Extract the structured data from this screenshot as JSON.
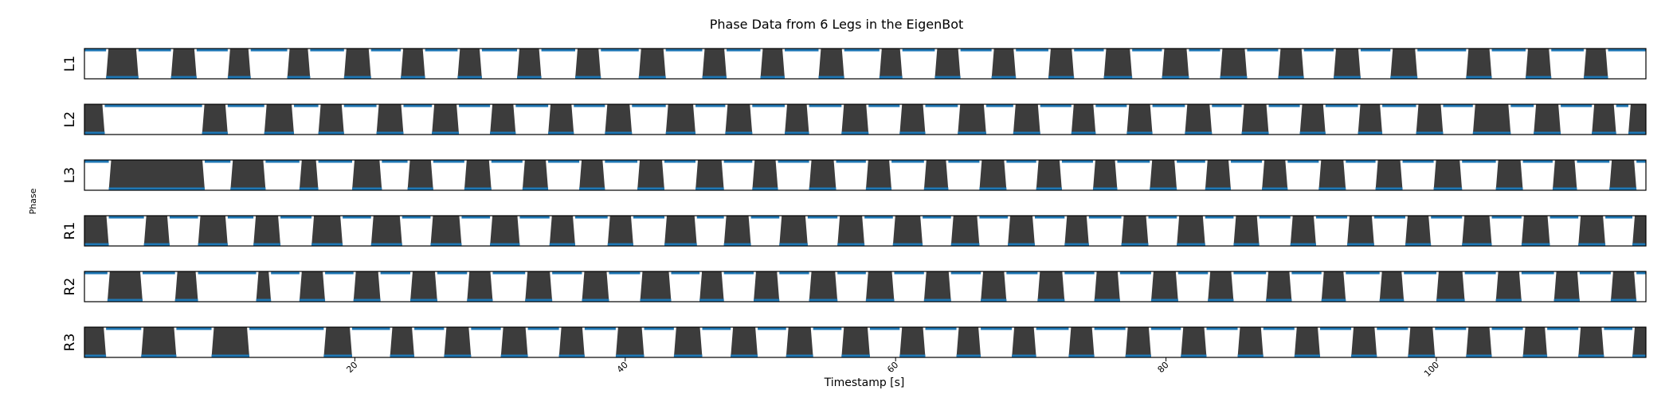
{
  "chart_data": {
    "type": "area",
    "title": "Phase Data from 6 Legs in the EigenBot",
    "xlabel": "Timestamp [s]",
    "ylabel": "Phase",
    "xlim": [
      0,
      115.5
    ],
    "x_ticks": [
      20,
      40,
      60,
      80,
      100
    ],
    "colors": {
      "stance_fill": "#3c3c3c",
      "phase_line": "#1f77b4",
      "frame": "#000000"
    },
    "legs": [
      {
        "name": "L1",
        "stance_intervals": [
          [
            1.6,
            4.0
          ],
          [
            6.4,
            8.3
          ],
          [
            10.6,
            12.3
          ],
          [
            15.0,
            16.7
          ],
          [
            19.2,
            21.2
          ],
          [
            23.4,
            25.2
          ],
          [
            27.6,
            29.4
          ],
          [
            32.0,
            33.8
          ],
          [
            36.3,
            38.2
          ],
          [
            41.0,
            43.0
          ],
          [
            45.7,
            47.5
          ],
          [
            50.0,
            51.8
          ],
          [
            54.3,
            56.2
          ],
          [
            58.8,
            60.5
          ],
          [
            62.9,
            64.8
          ],
          [
            67.1,
            68.9
          ],
          [
            71.3,
            73.2
          ],
          [
            75.4,
            77.5
          ],
          [
            79.7,
            81.7
          ],
          [
            84.0,
            86.0
          ],
          [
            88.3,
            90.2
          ],
          [
            92.4,
            94.4
          ],
          [
            96.6,
            98.6
          ],
          [
            102.2,
            104.1
          ],
          [
            106.6,
            108.5
          ],
          [
            110.9,
            112.7
          ]
        ]
      },
      {
        "name": "L2",
        "stance_intervals": [
          [
            0,
            1.5
          ],
          [
            8.7,
            10.6
          ],
          [
            13.3,
            15.5
          ],
          [
            17.3,
            19.2
          ],
          [
            21.6,
            23.6
          ],
          [
            25.7,
            27.7
          ],
          [
            30.0,
            31.9
          ],
          [
            34.3,
            36.2
          ],
          [
            38.5,
            40.5
          ],
          [
            43.0,
            45.2
          ],
          [
            47.4,
            49.4
          ],
          [
            51.8,
            53.6
          ],
          [
            56.0,
            58.0
          ],
          [
            60.3,
            62.2
          ],
          [
            64.6,
            66.7
          ],
          [
            68.7,
            70.7
          ],
          [
            73.0,
            74.8
          ],
          [
            77.1,
            79.0
          ],
          [
            81.4,
            83.4
          ],
          [
            85.6,
            87.6
          ],
          [
            89.9,
            91.8
          ],
          [
            94.2,
            96.0
          ],
          [
            98.5,
            100.5
          ],
          [
            102.7,
            105.5
          ],
          [
            107.2,
            109.2
          ],
          [
            111.5,
            113.3
          ],
          [
            114.2,
            115.5
          ]
        ]
      },
      {
        "name": "L3",
        "stance_intervals": [
          [
            1.8,
            8.9
          ],
          [
            10.8,
            13.4
          ],
          [
            15.9,
            17.3
          ],
          [
            19.8,
            22.0
          ],
          [
            23.9,
            25.8
          ],
          [
            28.1,
            30.1
          ],
          [
            32.4,
            34.3
          ],
          [
            36.6,
            38.5
          ],
          [
            40.9,
            42.9
          ],
          [
            45.2,
            47.3
          ],
          [
            49.4,
            51.3
          ],
          [
            53.6,
            55.6
          ],
          [
            57.8,
            59.7
          ],
          [
            62.1,
            63.9
          ],
          [
            66.2,
            68.2
          ],
          [
            70.4,
            72.3
          ],
          [
            74.6,
            76.4
          ],
          [
            78.8,
            80.8
          ],
          [
            82.9,
            84.8
          ],
          [
            87.1,
            89.0
          ],
          [
            91.3,
            93.3
          ],
          [
            95.5,
            97.5
          ],
          [
            99.8,
            101.9
          ],
          [
            104.4,
            106.4
          ],
          [
            108.6,
            110.4
          ],
          [
            112.8,
            114.8
          ]
        ]
      },
      {
        "name": "R1",
        "stance_intervals": [
          [
            0,
            1.8
          ],
          [
            4.4,
            6.3
          ],
          [
            8.4,
            10.6
          ],
          [
            12.5,
            14.5
          ],
          [
            16.8,
            19.1
          ],
          [
            21.2,
            23.5
          ],
          [
            25.6,
            27.9
          ],
          [
            30.0,
            32.2
          ],
          [
            34.4,
            36.3
          ],
          [
            38.7,
            40.6
          ],
          [
            42.9,
            45.3
          ],
          [
            47.3,
            49.3
          ],
          [
            51.4,
            53.5
          ],
          [
            55.7,
            57.7
          ],
          [
            59.8,
            62.0
          ],
          [
            64.1,
            66.2
          ],
          [
            68.3,
            70.3
          ],
          [
            72.5,
            74.3
          ],
          [
            76.7,
            78.7
          ],
          [
            80.8,
            82.9
          ],
          [
            85.0,
            86.9
          ],
          [
            89.2,
            91.1
          ],
          [
            93.4,
            95.4
          ],
          [
            97.7,
            99.6
          ],
          [
            101.9,
            104.1
          ],
          [
            106.3,
            108.4
          ],
          [
            110.5,
            112.5
          ],
          [
            114.5,
            115.5
          ]
        ]
      },
      {
        "name": "R2",
        "stance_intervals": [
          [
            1.7,
            4.3
          ],
          [
            6.7,
            8.4
          ],
          [
            12.7,
            13.8
          ],
          [
            15.9,
            17.8
          ],
          [
            19.9,
            21.9
          ],
          [
            24.1,
            26.1
          ],
          [
            28.3,
            30.2
          ],
          [
            32.6,
            34.6
          ],
          [
            36.8,
            38.8
          ],
          [
            41.1,
            43.4
          ],
          [
            45.5,
            47.3
          ],
          [
            49.5,
            51.4
          ],
          [
            53.6,
            55.7
          ],
          [
            57.8,
            59.9
          ],
          [
            62.1,
            64.1
          ],
          [
            66.3,
            68.2
          ],
          [
            70.5,
            72.5
          ],
          [
            74.7,
            76.6
          ],
          [
            78.9,
            80.9
          ],
          [
            83.1,
            85.0
          ],
          [
            87.4,
            89.3
          ],
          [
            91.5,
            93.3
          ],
          [
            95.8,
            97.6
          ],
          [
            100.0,
            102.1
          ],
          [
            104.4,
            106.3
          ],
          [
            108.7,
            110.6
          ],
          [
            112.9,
            114.8
          ]
        ]
      },
      {
        "name": "R3",
        "stance_intervals": [
          [
            0,
            1.6
          ],
          [
            4.2,
            6.8
          ],
          [
            9.4,
            12.2
          ],
          [
            17.7,
            19.8
          ],
          [
            22.6,
            24.4
          ],
          [
            26.6,
            28.6
          ],
          [
            30.8,
            32.8
          ],
          [
            35.1,
            37.0
          ],
          [
            39.3,
            41.4
          ],
          [
            43.6,
            45.7
          ],
          [
            47.8,
            49.8
          ],
          [
            51.9,
            53.9
          ],
          [
            56.0,
            58.1
          ],
          [
            60.3,
            62.2
          ],
          [
            64.5,
            66.3
          ],
          [
            68.6,
            70.4
          ],
          [
            72.8,
            74.7
          ],
          [
            77.0,
            78.9
          ],
          [
            81.1,
            83.0
          ],
          [
            85.3,
            87.2
          ],
          [
            89.5,
            91.4
          ],
          [
            93.7,
            95.6
          ],
          [
            97.9,
            99.9
          ],
          [
            102.2,
            104.1
          ],
          [
            106.4,
            108.2
          ],
          [
            110.5,
            112.4
          ],
          [
            114.5,
            115.5
          ]
        ]
      }
    ]
  }
}
